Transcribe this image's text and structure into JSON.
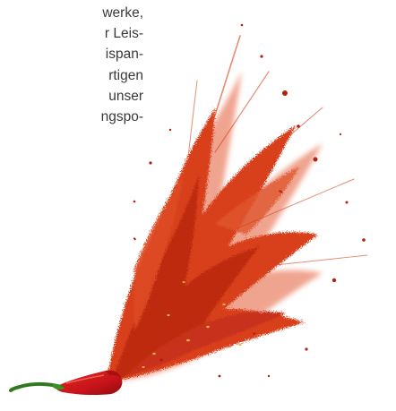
{
  "article": {
    "text_lines": [
      "werke,",
      "r Leis-",
      "ispan-",
      "rtigen",
      "unser",
      "ngspo-"
    ]
  },
  "image": {
    "subject": "chili-pepper-with-exploding-paprika-powder",
    "colors": {
      "background": "#ffffff",
      "powder": "#d8401c",
      "powder_dark": "#b8280e",
      "pepper_red": "#c8141a",
      "stem_green": "#2f7a1e",
      "body_text": "#3a3a3a"
    }
  }
}
